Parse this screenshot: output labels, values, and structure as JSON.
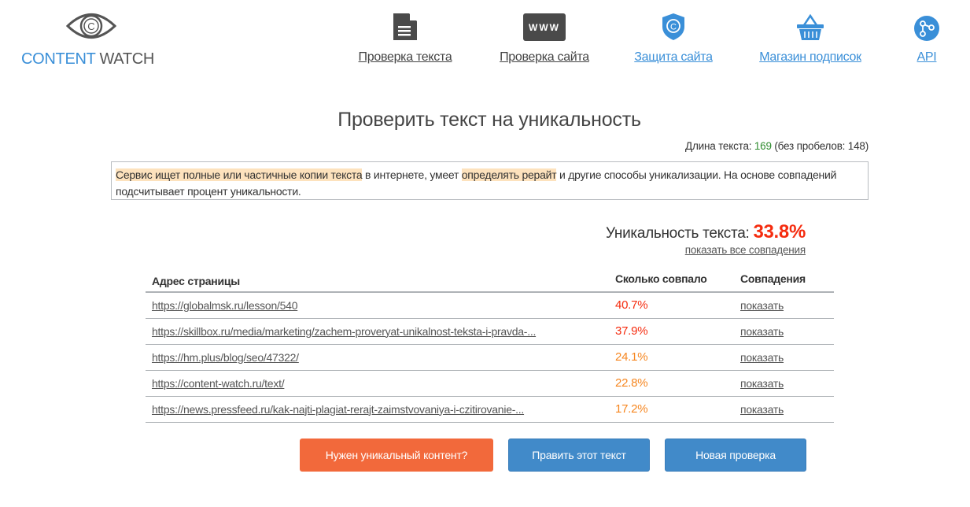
{
  "logo": {
    "part1": "CONTENT",
    "part2": "WATCH"
  },
  "nav": [
    {
      "label": "Проверка текста",
      "icon": "document-icon"
    },
    {
      "label": "Проверка сайта",
      "icon": "www-icon"
    },
    {
      "label": "Защита сайта",
      "icon": "shield-copyright-icon"
    },
    {
      "label": "Магазин подписок",
      "icon": "basket-icon"
    },
    {
      "label": "API",
      "icon": "api-nodes-icon"
    }
  ],
  "title": "Проверить текст на уникальность",
  "length": {
    "prefix": "Длина текста: ",
    "value": "169",
    "suffix": " (без пробелов: 148)"
  },
  "text": {
    "h1": "Сервис ищет полные или частичные копии текста",
    "t1": " в интернете, умеет ",
    "h2": "определять рерайт",
    "t2": " и другие способы уникализации. На основе совпадений подсчитывает процент уникальности."
  },
  "uniqueness": {
    "label": "Уникальность текста: ",
    "value": "33.8%",
    "show_all": "показать все совпадения"
  },
  "table": {
    "headers": [
      "Адрес страницы",
      "Сколько совпало",
      "Совпадения"
    ],
    "rows": [
      {
        "url": "https://globalmsk.ru/lesson/540",
        "pct": "40.7%",
        "action": "показать",
        "color": "#f52c0f"
      },
      {
        "url": "https://skillbox.ru/media/marketing/zachem-proveryat-unikalnost-teksta-i-pravda-...",
        "pct": "37.9%",
        "action": "показать",
        "color": "#f52c0f"
      },
      {
        "url": "https://hm.plus/blog/seo/47322/",
        "pct": "24.1%",
        "action": "показать",
        "color": "#f6861f"
      },
      {
        "url": "https://content-watch.ru/text/",
        "pct": "22.8%",
        "action": "показать",
        "color": "#f6861f"
      },
      {
        "url": "https://news.pressfeed.ru/kak-najti-plagiat-rerajt-zaimstvovaniya-i-czitirovanie-...",
        "pct": "17.2%",
        "action": "показать",
        "color": "#f6861f"
      }
    ]
  },
  "buttons": {
    "need_content": "Нужен уникальный контент?",
    "edit": "Править этот текст",
    "new_check": "Новая проверка"
  }
}
